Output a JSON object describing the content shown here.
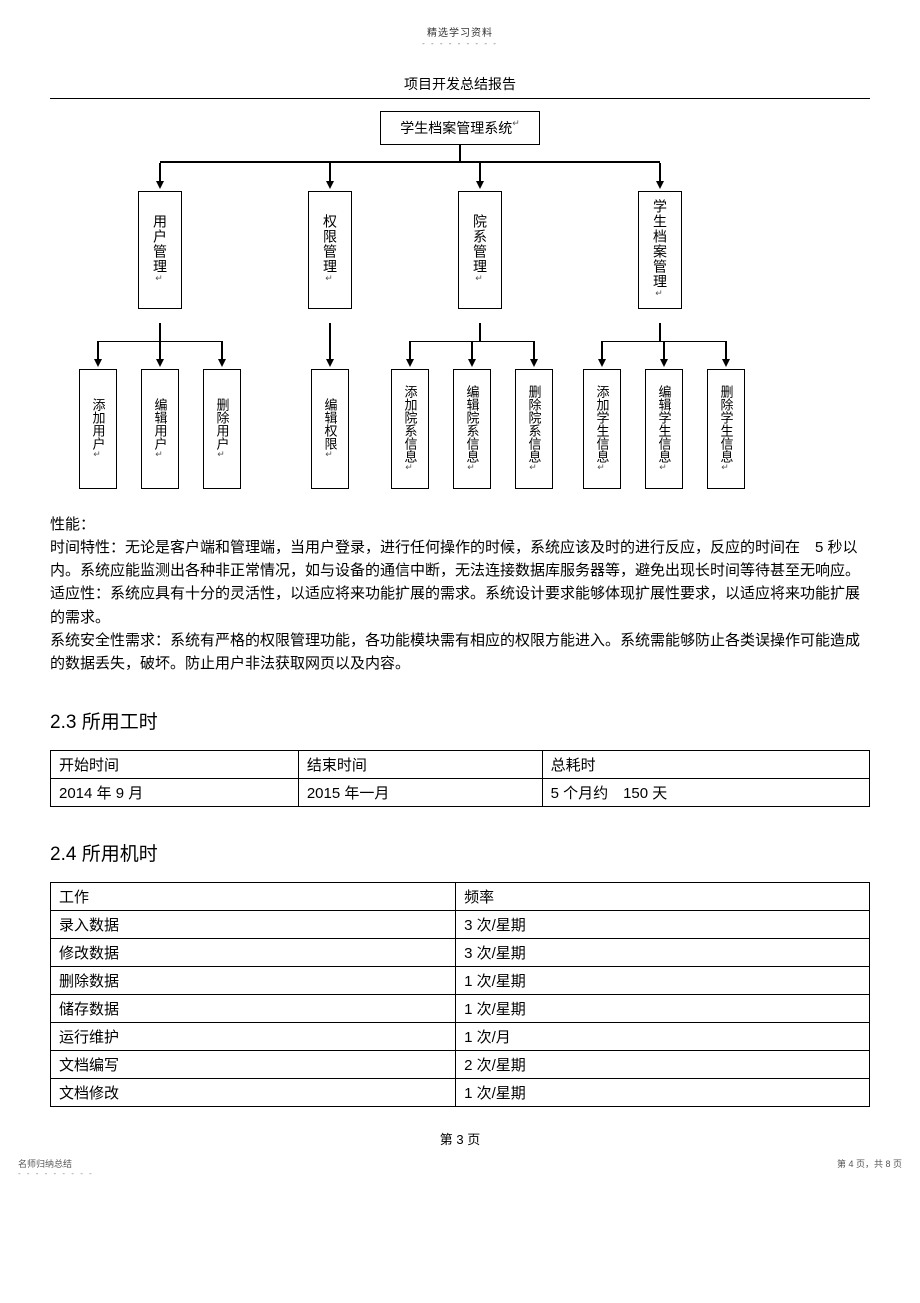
{
  "header": {
    "top_small": "精选学习资料",
    "top_dash": "- - - - - - - - -",
    "doc_title": "项目开发总结报告"
  },
  "chart": {
    "root": "学生档案管理系统",
    "level2": [
      {
        "label": "用户管理",
        "children": [
          "添加用户",
          "编辑用户",
          "删除用户"
        ]
      },
      {
        "label": "权限管理",
        "children": [
          "编辑权限"
        ]
      },
      {
        "label": "院系管理",
        "children": [
          "添加院系信息",
          "编辑院系信息",
          "删除院系信息"
        ]
      },
      {
        "label": "学生档案管理",
        "children": [
          "添加学生信息",
          "编辑学生信息",
          "删除学生信息"
        ]
      }
    ],
    "box_border": "#000000",
    "line_color": "#000000"
  },
  "body": {
    "perf_label": "性能：",
    "p1": "时间特性：无论是客户端和管理端，当用户登录，进行任何操作的时候，系统应该及时的进行反应，反应的时间在　5 秒以内。系统应能监测出各种非正常情况，如与设备的通信中断，无法连接数据库服务器等，避免出现长时间等待甚至无响应。",
    "p2": "适应性：系统应具有十分的灵活性，以适应将来功能扩展的需求。系统设计要求能够体现扩展性要求，以适应将来功能扩展的需求。",
    "p3": "系统安全性需求：系统有严格的权限管理功能，各功能模块需有相应的权限方能进入。系统需能够防止各类误操作可能造成的数据丢失，破坏。防止用户非法获取网页以及内容。"
  },
  "sec23": {
    "heading_num": "2.3",
    "heading_txt": "所用工时",
    "columns": [
      "开始时间",
      "结束时间",
      "总耗时"
    ],
    "rows": [
      [
        "2014 年 9 月",
        "2015 年一月",
        "5 个月约　150 天"
      ]
    ]
  },
  "sec24": {
    "heading_num": "2.4",
    "heading_txt": "所用机时",
    "columns": [
      "工作",
      "频率"
    ],
    "rows": [
      [
        "录入数据",
        "3 次/星期"
      ],
      [
        "修改数据",
        "3 次/星期"
      ],
      [
        "删除数据",
        "1 次/星期"
      ],
      [
        "储存数据",
        "1 次/星期"
      ],
      [
        "运行维护",
        "1 次/月"
      ],
      [
        "文档编写",
        "2 次/星期"
      ],
      [
        "文档修改",
        "1 次/星期"
      ]
    ]
  },
  "footer": {
    "page_num": "第 3 页",
    "left": "名师归纳总结",
    "left_dash": "- - - - - - - - -",
    "right": "第 4 页，共 8 页"
  }
}
